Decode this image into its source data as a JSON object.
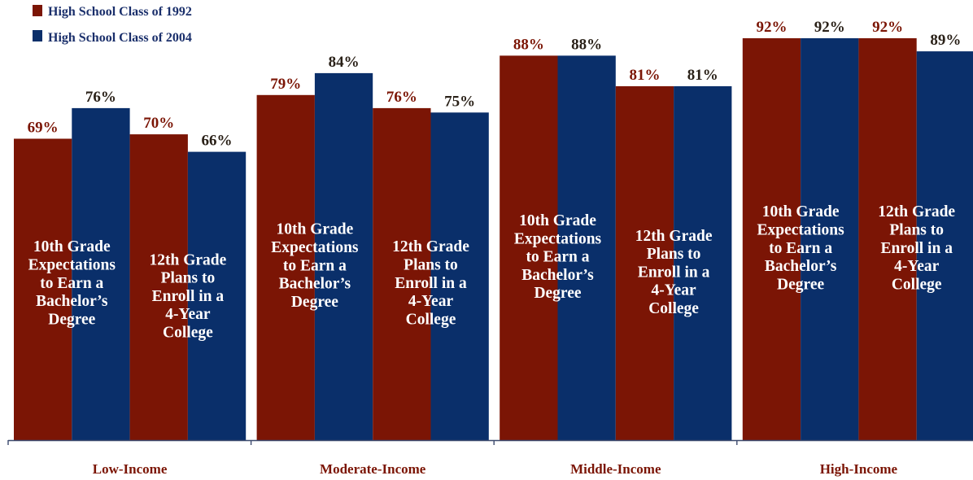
{
  "colors": {
    "class_1992": "#7b1505",
    "class_2004": "#0a2f6a",
    "axis": "#3c4a6e",
    "category_text": "#7b1505",
    "value_text_2004": "#2a2118"
  },
  "chart_data": {
    "type": "bar",
    "title": "",
    "xlabel": "",
    "ylabel": "",
    "ylim": [
      0,
      100
    ],
    "grid": false,
    "legend_position": "top-left",
    "series_names": [
      "High School Class of 1992",
      "High School Class of 2004"
    ],
    "measures": [
      {
        "id": "m10",
        "label_lines": [
          "10th Grade",
          "Expectations",
          "to Earn a",
          "Bachelor’s",
          "Degree"
        ]
      },
      {
        "id": "m12",
        "label_lines": [
          "12th Grade",
          "Plans to",
          "Enroll in a",
          "4-Year",
          "College"
        ]
      }
    ],
    "categories": [
      "Low-Income",
      "Moderate-Income",
      "Middle-Income",
      "High-Income"
    ],
    "values": {
      "Low-Income": {
        "m10": [
          69,
          76
        ],
        "m12": [
          70,
          66
        ]
      },
      "Moderate-Income": {
        "m10": [
          79,
          84
        ],
        "m12": [
          76,
          75
        ]
      },
      "Middle-Income": {
        "m10": [
          88,
          88
        ],
        "m12": [
          81,
          81
        ]
      },
      "High-Income": {
        "m10": [
          92,
          92
        ],
        "m12": [
          92,
          89
        ]
      }
    },
    "value_labels": {
      "Low-Income": {
        "m10": [
          "69%",
          "76%"
        ],
        "m12": [
          "70%",
          "66%"
        ]
      },
      "Moderate-Income": {
        "m10": [
          "79%",
          "84%"
        ],
        "m12": [
          "76%",
          "75%"
        ]
      },
      "Middle-Income": {
        "m10": [
          "88%",
          "88%"
        ],
        "m12": [
          "81%",
          "81%"
        ]
      },
      "High-Income": {
        "m10": [
          "92%",
          "92%"
        ],
        "m12": [
          "92%",
          "89%"
        ]
      }
    }
  }
}
